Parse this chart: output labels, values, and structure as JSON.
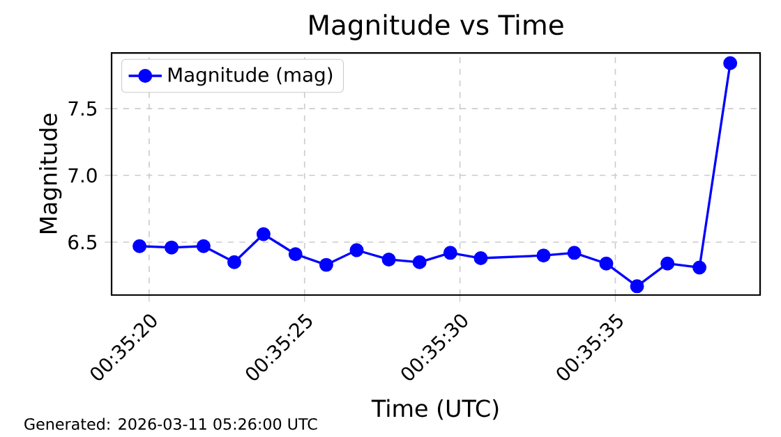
{
  "chart_data": {
    "type": "line",
    "title": "Magnitude vs Time",
    "xlabel": "Time (UTC)",
    "ylabel": "Magnitude",
    "annotations": [
      "Generated: 2026-03-11 05:26:00 UTC"
    ],
    "x": [
      0.588803,
      0.589089,
      0.589375,
      0.58965,
      0.589911,
      0.590197,
      0.590472,
      0.590744,
      0.591031,
      0.591306,
      0.591581,
      0.591853,
      0.592414,
      0.592689,
      0.592975,
      0.59325,
      0.593522,
      0.593808,
      0.594083
    ],
    "series": [
      {
        "name": "Magnitude (mag)",
        "color": "#0000ff",
        "values": [
          6.47,
          6.46,
          6.47,
          6.35,
          6.56,
          6.41,
          6.33,
          6.44,
          6.37,
          6.35,
          6.42,
          6.38,
          6.4,
          6.42,
          6.34,
          6.17,
          6.34,
          6.31,
          7.84
        ]
      }
    ],
    "xlim": [
      0.588553,
      0.59435
    ],
    "ylim": [
      6.104,
      7.917
    ],
    "xticks": [
      {
        "value": 0.588889,
        "label": "00:35:20"
      },
      {
        "value": 0.590278,
        "label": "00:35:25"
      },
      {
        "value": 0.591667,
        "label": "00:35:30"
      },
      {
        "value": 0.593056,
        "label": "00:35:35"
      }
    ],
    "yticks": [
      6.5,
      {
        "value": 7,
        "label": "7.0"
      },
      7.5
    ],
    "grid": true,
    "legend": "top left",
    "marker": "circle",
    "line_style": "solid"
  }
}
